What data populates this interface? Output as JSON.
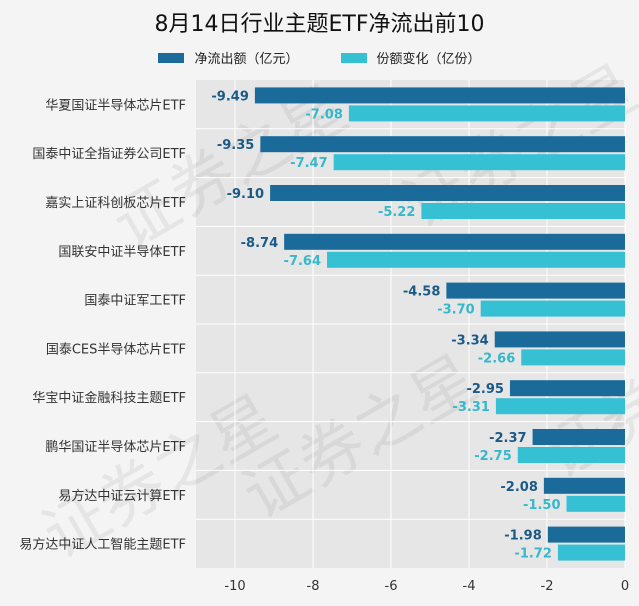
{
  "chart_data": {
    "type": "bar",
    "orientation": "horizontal",
    "title": "8月14日行业主题ETF净流出前10",
    "categories": [
      "华夏国证半导体芯片ETF",
      "国泰中证全指证券公司ETF",
      "嘉实上证科创板芯片ETF",
      "国联安中证半导体ETF",
      "国泰中证军工ETF",
      "国泰CES半导体芯片ETF",
      "华宝中证金融科技主题ETF",
      "鹏华国证半导体芯片ETF",
      "易方达中证云计算ETF",
      "易方达中证人工智能主题ETF"
    ],
    "series": [
      {
        "name": "净流出额（亿元）",
        "color": "#1a6b9a",
        "label_color": "#1a5a86",
        "values": [
          -9.49,
          -9.35,
          -9.1,
          -8.74,
          -4.58,
          -3.34,
          -2.95,
          -2.37,
          -2.08,
          -1.98
        ]
      },
      {
        "name": "份额变化（亿份）",
        "color": "#36c0d4",
        "label_color": "#36b8cc",
        "values": [
          -7.08,
          -7.47,
          -5.22,
          -7.64,
          -3.7,
          -2.66,
          -3.31,
          -2.75,
          -1.5,
          -1.72
        ]
      }
    ],
    "xlim": [
      -11,
      0
    ],
    "xticks": [
      -10,
      -8,
      -6,
      -4,
      -2,
      0
    ],
    "grid": true,
    "legend_position": "top-center",
    "plot_background": "#e6e6e6",
    "watermark": "证券之星"
  }
}
